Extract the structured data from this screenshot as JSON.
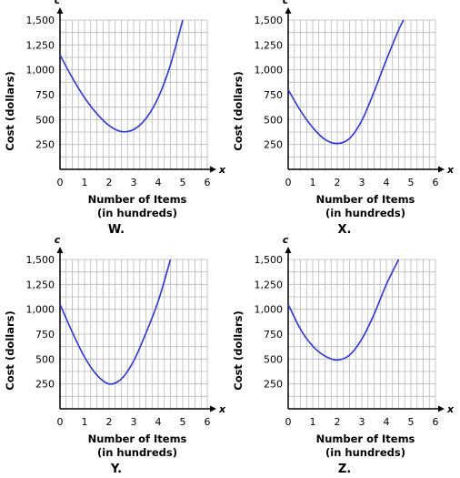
{
  "chart_data": [
    {
      "type": "line",
      "title": "",
      "label": "W.",
      "xlabel": "Number of Items",
      "xlabel2": "(in hundreds)",
      "ylabel": "Cost (dollars)",
      "x_axis_letter": "x",
      "y_axis_letter": "c",
      "xlim": [
        0,
        6
      ],
      "ylim": [
        0,
        1500
      ],
      "xticks": [
        "0",
        "1",
        "2",
        "3",
        "4",
        "5",
        "6"
      ],
      "yticks": [
        "250",
        "500",
        "750",
        "1,000",
        "1,250",
        "1,500"
      ],
      "grid": true,
      "series": [
        {
          "x": [
            0,
            0.5,
            1,
            1.5,
            2,
            2.5,
            3,
            3.5,
            4,
            4.5,
            5
          ],
          "y": [
            1150,
            920,
            720,
            560,
            440,
            380,
            400,
            510,
            720,
            1050,
            1500
          ]
        }
      ],
      "curve_color": "#2b35d8"
    },
    {
      "type": "line",
      "title": "",
      "label": "X.",
      "xlabel": "Number of Items",
      "xlabel2": "(in hundreds)",
      "ylabel": "Cost (dollars)",
      "x_axis_letter": "x",
      "y_axis_letter": "c",
      "xlim": [
        0,
        6
      ],
      "ylim": [
        0,
        1500
      ],
      "xticks": [
        "0",
        "1",
        "2",
        "3",
        "4",
        "5",
        "6"
      ],
      "yticks": [
        "250",
        "500",
        "750",
        "1,000",
        "1,250",
        "1,500"
      ],
      "grid": true,
      "series": [
        {
          "x": [
            0,
            0.5,
            1,
            1.5,
            2,
            2.5,
            3,
            3.5,
            4,
            4.5,
            4.7
          ],
          "y": [
            800,
            590,
            420,
            300,
            260,
            310,
            490,
            780,
            1100,
            1400,
            1500
          ]
        }
      ],
      "curve_color": "#2b35d8"
    },
    {
      "type": "line",
      "title": "",
      "label": "Y.",
      "xlabel": "Number of Items",
      "xlabel2": "(in hundreds)",
      "ylabel": "Cost (dollars)",
      "x_axis_letter": "x",
      "y_axis_letter": "c",
      "xlim": [
        0,
        6
      ],
      "ylim": [
        0,
        1500
      ],
      "xticks": [
        "0",
        "1",
        "2",
        "3",
        "4",
        "5",
        "6"
      ],
      "yticks": [
        "250",
        "500",
        "750",
        "1,000",
        "1,250",
        "1,500"
      ],
      "grid": true,
      "series": [
        {
          "x": [
            0,
            0.5,
            1,
            1.5,
            2,
            2.5,
            3,
            3.5,
            4,
            4.5
          ],
          "y": [
            1050,
            770,
            520,
            340,
            250,
            300,
            480,
            760,
            1080,
            1500
          ]
        }
      ],
      "curve_color": "#2b35d8"
    },
    {
      "type": "line",
      "title": "",
      "label": "Z.",
      "xlabel": "Number of Items",
      "xlabel2": "(in hundreds)",
      "ylabel": "Cost (dollars)",
      "x_axis_letter": "x",
      "y_axis_letter": "c",
      "xlim": [
        0,
        6
      ],
      "ylim": [
        0,
        1500
      ],
      "xticks": [
        "0",
        "1",
        "2",
        "3",
        "4",
        "5",
        "6"
      ],
      "yticks": [
        "250",
        "500",
        "750",
        "1,000",
        "1,250",
        "1,500"
      ],
      "grid": true,
      "series": [
        {
          "x": [
            0,
            0.5,
            1,
            1.5,
            2,
            2.5,
            3,
            3.5,
            4,
            4.5
          ],
          "y": [
            1050,
            800,
            630,
            530,
            490,
            540,
            700,
            950,
            1250,
            1500
          ]
        }
      ],
      "curve_color": "#2b35d8"
    }
  ]
}
